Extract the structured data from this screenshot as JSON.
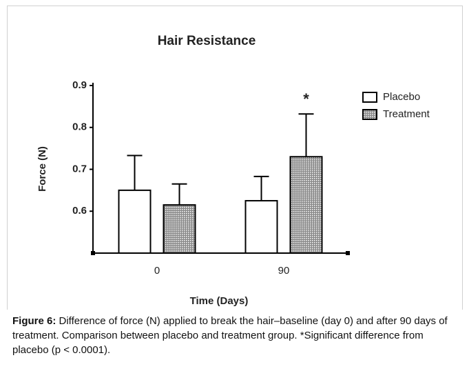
{
  "chart_data": {
    "type": "bar",
    "title": "Hair Resistance",
    "x_label": "Time (Days)",
    "y_label": "Force (N)",
    "categories": [
      "0",
      "90"
    ],
    "series": [
      {
        "name": "Placebo",
        "color": "#ffffff",
        "values": [
          0.65,
          0.625
        ],
        "errors": [
          0.083,
          0.058
        ]
      },
      {
        "name": "Treatment",
        "color": "#8a8a8a",
        "values": [
          0.615,
          0.73
        ],
        "errors": [
          0.05,
          0.102
        ]
      }
    ],
    "ylim": [
      0.5,
      0.9
    ],
    "yticks": [
      0.6,
      0.7,
      0.8,
      0.9
    ],
    "annotations": [
      {
        "text": "*",
        "series": 1,
        "category": 1
      }
    ],
    "legend": "right"
  },
  "caption": {
    "label": "Figure 6:",
    "text": "Difference of force (N) applied to break the hair–baseline (day 0) and after 90 days of treatment. Comparison between placebo and treatment group. *Significant difference from placebo (p < 0.0001)."
  }
}
